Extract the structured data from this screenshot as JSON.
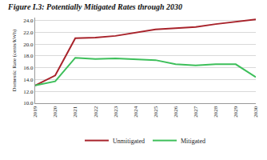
{
  "chart_data": {
    "type": "line",
    "title": "Figure I.3: Potentially Mitigated Rates through 2030",
    "y_label": "Domestic Rate (cents/kWh)",
    "categories": [
      "2019",
      "2020",
      "2021",
      "2022",
      "2023",
      "2024",
      "2025",
      "2026",
      "2027",
      "2028",
      "2029",
      "2030"
    ],
    "series": [
      {
        "name": "Unmitigated",
        "color": "#a8232b",
        "values": [
          13.0,
          14.7,
          21.0,
          21.1,
          21.4,
          21.9,
          22.5,
          22.7,
          22.9,
          23.4,
          23.8,
          24.2
        ]
      },
      {
        "name": "Mitigated",
        "color": "#3dbf5a",
        "values": [
          13.0,
          13.7,
          17.7,
          17.5,
          17.6,
          17.4,
          17.3,
          16.6,
          16.4,
          16.6,
          16.6,
          14.4
        ]
      }
    ],
    "ylim": [
      10,
      24.5
    ],
    "yticks": [
      {
        "value": 10,
        "label": "10.0"
      },
      {
        "value": 12,
        "label": "12.0"
      },
      {
        "value": 14,
        "label": "14.0"
      },
      {
        "value": 16,
        "label": "16.0"
      },
      {
        "value": 18,
        "label": "18.0"
      },
      {
        "value": 20,
        "label": "20.0"
      },
      {
        "value": 22,
        "label": "22.0"
      },
      {
        "value": 24,
        "label": "24.0"
      }
    ],
    "grid": true,
    "legend": "bottom"
  }
}
